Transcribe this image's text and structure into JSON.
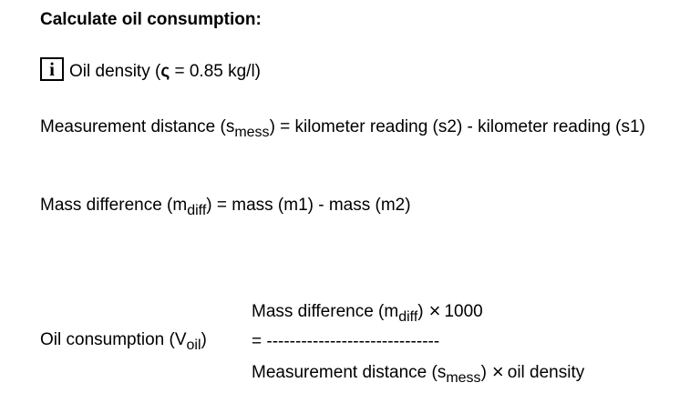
{
  "heading": "Calculate oil consumption:",
  "info": {
    "icon_glyph": "i",
    "icon_name": "info-icon",
    "text_before": "Oil density (",
    "symbol": "ς",
    "text_after": " = 0.85 kg/l)"
  },
  "measurement_distance": {
    "prefix": "Measurement distance (s",
    "subscript": "mess",
    "suffix": ") = kilometer reading (s2) - kilometer reading (s1)"
  },
  "mass_difference": {
    "prefix": "Mass difference (m",
    "subscript": "diff",
    "suffix": ") = mass (m1) - mass (m2)"
  },
  "formula": {
    "label_prefix": "Oil consumption (V",
    "label_subscript": "oil",
    "label_suffix": ")",
    "numerator_prefix": "Mass difference (m",
    "numerator_subscript": "diff",
    "numerator_suffix": ")",
    "times_symbol": "×",
    "numerator_factor": "1000",
    "equals_line": "= ------------------------------",
    "denominator_prefix": "Measurement distance (s",
    "denominator_subscript": "mess",
    "denominator_suffix": ")",
    "denominator_factor": "oil density"
  }
}
